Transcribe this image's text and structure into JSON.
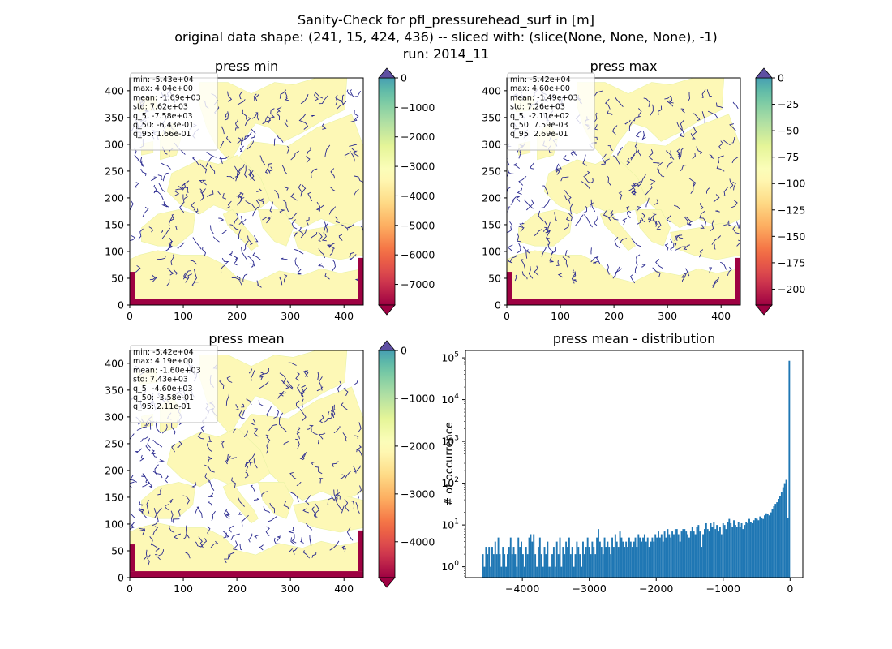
{
  "figure": {
    "title_lines": [
      "Sanity-Check for pfl_pressurehead_surf in [m]",
      "original data shape: (241, 15, 424, 436) -- sliced with: (slice(None, None, None), -1)",
      "run: 2014_11"
    ]
  },
  "chart_data": [
    {
      "type": "heatmap",
      "title": "press min",
      "x_ticks": [
        0,
        100,
        200,
        300,
        400
      ],
      "y_ticks": [
        0,
        50,
        100,
        150,
        200,
        250,
        300,
        350,
        400
      ],
      "xlim": [
        0,
        436
      ],
      "ylim": [
        0,
        424
      ],
      "colorbar": {
        "colormap": "Spectral",
        "range": [
          -7700,
          0
        ],
        "ticks": [
          0,
          -1000,
          -2000,
          -3000,
          -4000,
          -5000,
          -6000,
          -7000
        ],
        "tick_labels": [
          "0",
          "−1000",
          "−2000",
          "−3000",
          "−4000",
          "−5000",
          "−6000",
          "−7000"
        ],
        "extend": "both"
      },
      "stats": [
        "min: -5.43e+04",
        "max: 4.04e+00",
        "mean: -1.69e+03",
        "std: 7.62e+03",
        "q_5: -7.58e+03",
        "q_50: -6.43e-01",
        "q_95: 1.66e-01"
      ]
    },
    {
      "type": "heatmap",
      "title": "press max",
      "x_ticks": [
        0,
        100,
        200,
        300,
        400
      ],
      "y_ticks": [
        0,
        50,
        100,
        150,
        200,
        250,
        300,
        350,
        400
      ],
      "xlim": [
        0,
        436
      ],
      "ylim": [
        0,
        424
      ],
      "colorbar": {
        "colormap": "Spectral",
        "range": [
          -215,
          0
        ],
        "ticks": [
          0,
          -25,
          -50,
          -75,
          -100,
          -125,
          -150,
          -175,
          -200
        ],
        "tick_labels": [
          "0",
          "−25",
          "−50",
          "−75",
          "−100",
          "−125",
          "−150",
          "−175",
          "−200"
        ],
        "extend": "both"
      },
      "stats": [
        "min: -5.42e+04",
        "max: 4.60e+00",
        "mean: -1.49e+03",
        "std: 7.26e+03",
        "q_5: -2.11e+02",
        "q_50: 7.59e-03",
        "q_95: 2.69e-01"
      ]
    },
    {
      "type": "heatmap",
      "title": "press mean",
      "x_ticks": [
        0,
        100,
        200,
        300,
        400
      ],
      "y_ticks": [
        0,
        50,
        100,
        150,
        200,
        250,
        300,
        350,
        400
      ],
      "xlim": [
        0,
        436
      ],
      "ylim": [
        0,
        424
      ],
      "colorbar": {
        "colormap": "Spectral",
        "range": [
          -4750,
          0
        ],
        "ticks": [
          0,
          -1000,
          -2000,
          -3000,
          -4000
        ],
        "tick_labels": [
          "0",
          "−1000",
          "−2000",
          "−3000",
          "−4000"
        ],
        "extend": "both"
      },
      "stats": [
        "min: -5.42e+04",
        "max: 4.19e+00",
        "mean: -1.60e+03",
        "std: 7.43e+03",
        "q_5: -4.60e+03",
        "q_50: -3.58e-01",
        "q_95: 2.11e-01"
      ]
    },
    {
      "type": "bar",
      "title": "press mean - distribution",
      "xlabel": "",
      "ylabel": "# of occurrence",
      "log_y": true,
      "xlim": [
        -4850,
        190
      ],
      "ylim": [
        0.55,
        150000
      ],
      "x_ticks": [
        -4000,
        -3000,
        -2000,
        -1000,
        0
      ],
      "x_tick_labels": [
        "−4000",
        "−3000",
        "−2000",
        "−1000",
        "0"
      ],
      "y_ticks": [
        1,
        10,
        100,
        1000,
        10000,
        100000
      ],
      "bar_color": "#1f77b4",
      "bin_width": 23,
      "bins": [
        [
          -4600,
          2
        ],
        [
          -4577,
          1
        ],
        [
          -4554,
          3
        ],
        [
          -4531,
          2
        ],
        [
          -4508,
          3
        ],
        [
          -4485,
          1
        ],
        [
          -4462,
          3
        ],
        [
          -4439,
          2
        ],
        [
          -4416,
          4
        ],
        [
          -4393,
          2
        ],
        [
          -4370,
          5
        ],
        [
          -4347,
          2
        ],
        [
          -4324,
          1
        ],
        [
          -4301,
          3
        ],
        [
          -4278,
          2
        ],
        [
          -4255,
          1
        ],
        [
          -4232,
          2
        ],
        [
          -4209,
          3
        ],
        [
          -4186,
          5
        ],
        [
          -4163,
          2
        ],
        [
          -4140,
          3
        ],
        [
          -4117,
          2
        ],
        [
          -4094,
          1
        ],
        [
          -4071,
          5
        ],
        [
          -4048,
          3
        ],
        [
          -4025,
          4
        ],
        [
          -4002,
          2
        ],
        [
          -3979,
          1
        ],
        [
          -3956,
          3
        ],
        [
          -3933,
          2
        ],
        [
          -3910,
          5
        ],
        [
          -3887,
          6
        ],
        [
          -3864,
          4
        ],
        [
          -3841,
          6
        ],
        [
          -3818,
          2
        ],
        [
          -3795,
          1
        ],
        [
          -3772,
          3
        ],
        [
          -3749,
          5
        ],
        [
          -3726,
          2
        ],
        [
          -3703,
          1
        ],
        [
          -3680,
          3
        ],
        [
          -3657,
          2
        ],
        [
          -3634,
          4
        ],
        [
          -3611,
          1
        ],
        [
          -3588,
          1
        ],
        [
          -3565,
          2
        ],
        [
          -3542,
          3
        ],
        [
          -3519,
          1
        ],
        [
          -3496,
          4
        ],
        [
          -3473,
          2
        ],
        [
          -3450,
          5
        ],
        [
          -3427,
          1
        ],
        [
          -3404,
          3
        ],
        [
          -3381,
          2
        ],
        [
          -3358,
          4
        ],
        [
          -3335,
          3
        ],
        [
          -3312,
          5
        ],
        [
          -3289,
          2
        ],
        [
          -3266,
          3
        ],
        [
          -3243,
          1
        ],
        [
          -3220,
          2
        ],
        [
          -3197,
          4
        ],
        [
          -3174,
          3
        ],
        [
          -3151,
          2
        ],
        [
          -3128,
          1
        ],
        [
          -3105,
          4
        ],
        [
          -3082,
          2
        ],
        [
          -3059,
          3
        ],
        [
          -3036,
          5
        ],
        [
          -3013,
          3
        ],
        [
          -2990,
          2
        ],
        [
          -2967,
          4
        ],
        [
          -2944,
          3
        ],
        [
          -2921,
          2
        ],
        [
          -2898,
          5
        ],
        [
          -2875,
          8
        ],
        [
          -2852,
          4
        ],
        [
          -2829,
          3
        ],
        [
          -2806,
          2
        ],
        [
          -2783,
          5
        ],
        [
          -2760,
          3
        ],
        [
          -2737,
          4
        ],
        [
          -2714,
          3
        ],
        [
          -2691,
          2
        ],
        [
          -2668,
          5
        ],
        [
          -2645,
          3
        ],
        [
          -2622,
          6
        ],
        [
          -2599,
          4
        ],
        [
          -2576,
          3
        ],
        [
          -2553,
          7
        ],
        [
          -2530,
          5
        ],
        [
          -2507,
          4
        ],
        [
          -2484,
          3
        ],
        [
          -2461,
          4
        ],
        [
          -2438,
          3
        ],
        [
          -2415,
          5
        ],
        [
          -2392,
          4
        ],
        [
          -2369,
          3
        ],
        [
          -2346,
          4
        ],
        [
          -2323,
          5
        ],
        [
          -2300,
          3
        ],
        [
          -2277,
          6
        ],
        [
          -2254,
          5
        ],
        [
          -2231,
          4
        ],
        [
          -2208,
          5
        ],
        [
          -2185,
          6
        ],
        [
          -2162,
          4
        ],
        [
          -2139,
          5
        ],
        [
          -2116,
          3
        ],
        [
          -2093,
          4
        ],
        [
          -2070,
          5
        ],
        [
          -2047,
          4
        ],
        [
          -2024,
          6
        ],
        [
          -2001,
          5
        ],
        [
          -1978,
          7
        ],
        [
          -1955,
          5
        ],
        [
          -1932,
          6
        ],
        [
          -1909,
          4
        ],
        [
          -1886,
          7
        ],
        [
          -1863,
          5
        ],
        [
          -1840,
          8
        ],
        [
          -1817,
          6
        ],
        [
          -1794,
          5
        ],
        [
          -1771,
          7
        ],
        [
          -1748,
          6
        ],
        [
          -1725,
          8
        ],
        [
          -1702,
          8
        ],
        [
          -1679,
          6
        ],
        [
          -1656,
          4
        ],
        [
          -1633,
          7
        ],
        [
          -1610,
          8
        ],
        [
          -1587,
          8
        ],
        [
          -1564,
          7
        ],
        [
          -1541,
          6
        ],
        [
          -1518,
          5
        ],
        [
          -1495,
          7
        ],
        [
          -1472,
          9
        ],
        [
          -1449,
          7
        ],
        [
          -1426,
          6
        ],
        [
          -1403,
          9
        ],
        [
          -1380,
          10
        ],
        [
          -1357,
          7
        ],
        [
          -1334,
          3
        ],
        [
          -1311,
          6
        ],
        [
          -1288,
          8
        ],
        [
          -1265,
          11
        ],
        [
          -1242,
          8
        ],
        [
          -1219,
          7
        ],
        [
          -1196,
          11
        ],
        [
          -1173,
          9
        ],
        [
          -1150,
          12
        ],
        [
          -1127,
          8
        ],
        [
          -1104,
          10
        ],
        [
          -1081,
          7
        ],
        [
          -1058,
          9
        ],
        [
          -1035,
          6
        ],
        [
          -1012,
          11
        ],
        [
          -989,
          10
        ],
        [
          -966,
          8
        ],
        [
          -943,
          12
        ],
        [
          -920,
          14
        ],
        [
          -897,
          11
        ],
        [
          -874,
          9
        ],
        [
          -851,
          13
        ],
        [
          -828,
          10
        ],
        [
          -805,
          9
        ],
        [
          -782,
          12
        ],
        [
          -759,
          9
        ],
        [
          -736,
          11
        ],
        [
          -713,
          8
        ],
        [
          -690,
          10
        ],
        [
          -667,
          12
        ],
        [
          -644,
          11
        ],
        [
          -621,
          14
        ],
        [
          -598,
          12
        ],
        [
          -575,
          11
        ],
        [
          -552,
          13
        ],
        [
          -529,
          15
        ],
        [
          -506,
          14
        ],
        [
          -483,
          13
        ],
        [
          -460,
          16
        ],
        [
          -437,
          15
        ],
        [
          -414,
          14
        ],
        [
          -391,
          17
        ],
        [
          -368,
          19
        ],
        [
          -345,
          18
        ],
        [
          -322,
          17
        ],
        [
          -299,
          20
        ],
        [
          -276,
          24
        ],
        [
          -253,
          28
        ],
        [
          -230,
          32
        ],
        [
          -207,
          35
        ],
        [
          -184,
          42
        ],
        [
          -161,
          50
        ],
        [
          -138,
          60
        ],
        [
          -115,
          80
        ],
        [
          -92,
          100
        ],
        [
          -69,
          120
        ],
        [
          -46,
          15
        ],
        [
          -23,
          85000
        ]
      ]
    }
  ]
}
